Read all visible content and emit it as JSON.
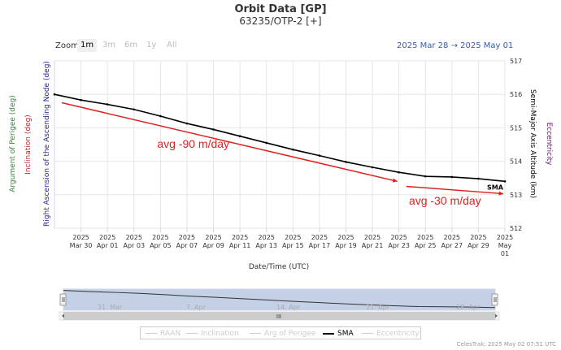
{
  "title": "Orbit Data [GP]",
  "subtitle": "63235/OTP-2 [+]",
  "zoom": {
    "label": "Zoom",
    "buttons": [
      {
        "label": "1m",
        "state": "active"
      },
      {
        "label": "3m",
        "state": "disabled"
      },
      {
        "label": "6m",
        "state": "disabled"
      },
      {
        "label": "1y",
        "state": "disabled"
      },
      {
        "label": "All",
        "state": "disabled"
      }
    ]
  },
  "range": {
    "from": "2025 Mar 28",
    "arrow": "→",
    "to": "2025 May 01"
  },
  "axes": {
    "left_labels": [
      {
        "text": "Argument of Perigee (deg)",
        "color": "#2e8b2e"
      },
      {
        "text": "Inclination (deg)",
        "color": "#b03030"
      },
      {
        "text": "Right Ascension of the Ascending Node (deg)",
        "color": "#2323a0"
      }
    ],
    "right_labels": [
      {
        "text": "Semi-Major Axis Altitude (km)",
        "color": "#000000"
      },
      {
        "text": "Eccentricity",
        "color": "#800080"
      }
    ],
    "xlabel": "Date/Time (UTC)"
  },
  "chart_data": {
    "type": "line",
    "x_range": [
      "2025-03-28",
      "2025-05-01"
    ],
    "y_right": {
      "label": "Semi-Major Axis Altitude (km)",
      "ylim": [
        512,
        517
      ],
      "ticks": [
        512,
        513,
        514,
        515,
        516,
        517
      ]
    },
    "x_ticks": [
      {
        "year": "2025",
        "day": "Mar 30",
        "x": "2025-03-30"
      },
      {
        "year": "2025",
        "day": "Apr 01",
        "x": "2025-04-01"
      },
      {
        "year": "2025",
        "day": "Apr 03",
        "x": "2025-04-03"
      },
      {
        "year": "2025",
        "day": "Apr 05",
        "x": "2025-04-05"
      },
      {
        "year": "2025",
        "day": "Apr 07",
        "x": "2025-04-07"
      },
      {
        "year": "2025",
        "day": "Apr 09",
        "x": "2025-04-09"
      },
      {
        "year": "2025",
        "day": "Apr 11",
        "x": "2025-04-11"
      },
      {
        "year": "2025",
        "day": "Apr 13",
        "x": "2025-04-13"
      },
      {
        "year": "2025",
        "day": "Apr 15",
        "x": "2025-04-15"
      },
      {
        "year": "2025",
        "day": "Apr 17",
        "x": "2025-04-17"
      },
      {
        "year": "2025",
        "day": "Apr 19",
        "x": "2025-04-19"
      },
      {
        "year": "2025",
        "day": "Apr 21",
        "x": "2025-04-21"
      },
      {
        "year": "2025",
        "day": "Apr 23",
        "x": "2025-04-23"
      },
      {
        "year": "2025",
        "day": "Apr 25",
        "x": "2025-04-25"
      },
      {
        "year": "2025",
        "day": "Apr 27",
        "x": "2025-04-27"
      },
      {
        "year": "2025",
        "day": "Apr 29",
        "x": "2025-04-29"
      },
      {
        "year": "2025",
        "day": "May 01",
        "x": "2025-05-01"
      }
    ],
    "grid": true,
    "series": [
      {
        "name": "SMA",
        "color": "#000000",
        "points": [
          [
            "2025-03-28",
            516.0
          ],
          [
            "2025-03-30",
            515.83
          ],
          [
            "2025-04-01",
            515.7
          ],
          [
            "2025-04-03",
            515.55
          ],
          [
            "2025-04-05",
            515.35
          ],
          [
            "2025-04-07",
            515.13
          ],
          [
            "2025-04-09",
            514.95
          ],
          [
            "2025-04-11",
            514.75
          ],
          [
            "2025-04-13",
            514.55
          ],
          [
            "2025-04-15",
            514.35
          ],
          [
            "2025-04-17",
            514.17
          ],
          [
            "2025-04-19",
            513.98
          ],
          [
            "2025-04-21",
            513.82
          ],
          [
            "2025-04-23",
            513.67
          ],
          [
            "2025-04-25",
            513.55
          ],
          [
            "2025-04-27",
            513.53
          ],
          [
            "2025-04-29",
            513.48
          ],
          [
            "2025-05-01",
            513.4
          ]
        ]
      }
    ],
    "annotations": [
      {
        "text": "avg -90 m/day",
        "color": "#e02020",
        "arrow_from": [
          "2025-03-28",
          515.75
        ],
        "arrow_to": [
          "2025-04-23",
          513.4
        ],
        "label_at": [
          "2025-04-05",
          514.4
        ]
      },
      {
        "text": "avg -30 m/day",
        "color": "#e02020",
        "arrow_from": [
          "2025-04-23",
          513.25
        ],
        "arrow_to": [
          "2025-05-01",
          513.03
        ],
        "label_at": [
          "2025-04-24",
          512.7
        ]
      }
    ],
    "navigator": {
      "ticks": [
        "31. Mar",
        "7. Apr",
        "14. Apr",
        "21. Apr",
        "28. Apr"
      ],
      "scrollbar_grip": "III"
    }
  },
  "legend": {
    "items": [
      {
        "label": "RAAN",
        "active": false
      },
      {
        "label": "Inclination",
        "active": false
      },
      {
        "label": "Arg of Perigee",
        "active": false
      },
      {
        "label": "SMA",
        "active": true
      },
      {
        "label": "Eccentricity",
        "active": false
      }
    ]
  },
  "credit": "CelesTrak: 2025 May 02 07:51 UTC",
  "colors": {
    "grid": "#e6e6e6",
    "axis": "#ccd6eb",
    "annotation": "#e02020",
    "navigator_fill": "#b9c8e1",
    "navigator_line": "#333333"
  }
}
